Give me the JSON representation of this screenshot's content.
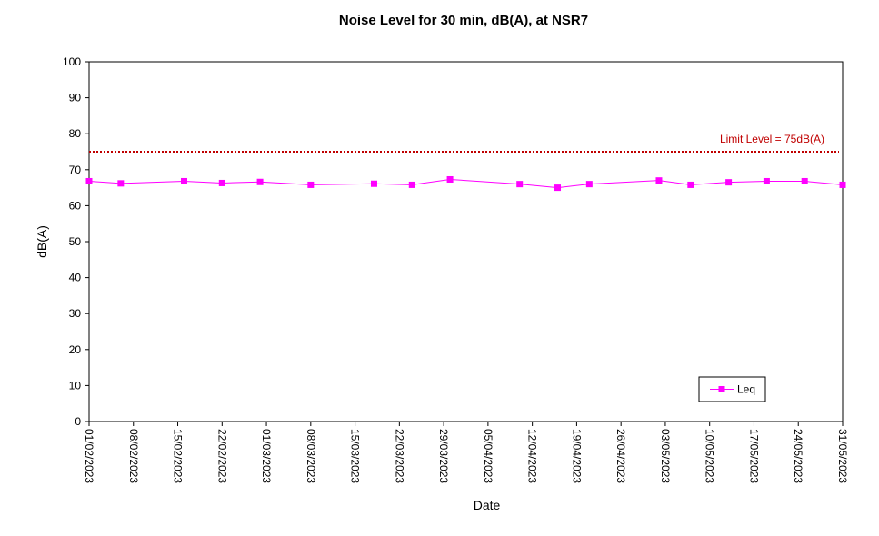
{
  "chart_data": {
    "type": "line",
    "title": "Noise Level for 30 min, dB(A), at NSR7",
    "xlabel": "Date",
    "ylabel": "dB(A)",
    "ylim": [
      0,
      100
    ],
    "yticks": [
      0,
      10,
      20,
      30,
      40,
      50,
      60,
      70,
      80,
      90,
      100
    ],
    "xlim": [
      "2023-02-01",
      "2023-05-31"
    ],
    "x_tick_labels": [
      "01/02/2023",
      "08/02/2023",
      "15/02/2023",
      "22/02/2023",
      "01/03/2023",
      "08/03/2023",
      "15/03/2023",
      "22/03/2023",
      "29/03/2023",
      "05/04/2023",
      "12/04/2023",
      "19/04/2023",
      "26/04/2023",
      "03/05/2023",
      "10/05/2023",
      "17/05/2023",
      "24/05/2023",
      "31/05/2023"
    ],
    "grid": {
      "x": false,
      "y": false
    },
    "legend_position": "bottom-right",
    "series": [
      {
        "name": "Leq",
        "color": "#ff00ff",
        "marker": "square",
        "points": [
          {
            "x": "2023-02-01",
            "y": 66.8
          },
          {
            "x": "2023-02-06",
            "y": 66.2
          },
          {
            "x": "2023-02-16",
            "y": 66.8
          },
          {
            "x": "2023-02-22",
            "y": 66.3
          },
          {
            "x": "2023-02-28",
            "y": 66.6
          },
          {
            "x": "2023-03-08",
            "y": 65.8
          },
          {
            "x": "2023-03-18",
            "y": 66.1
          },
          {
            "x": "2023-03-24",
            "y": 65.8
          },
          {
            "x": "2023-03-30",
            "y": 67.3
          },
          {
            "x": "2023-04-10",
            "y": 66.0
          },
          {
            "x": "2023-04-16",
            "y": 65.0
          },
          {
            "x": "2023-04-21",
            "y": 66.0
          },
          {
            "x": "2023-05-02",
            "y": 67.0
          },
          {
            "x": "2023-05-07",
            "y": 65.8
          },
          {
            "x": "2023-05-13",
            "y": 66.5
          },
          {
            "x": "2023-05-19",
            "y": 66.8
          },
          {
            "x": "2023-05-25",
            "y": 66.8
          },
          {
            "x": "2023-05-31",
            "y": 65.8
          }
        ]
      }
    ],
    "limit_line": {
      "value": 75,
      "label": "Limit Level  = 75dB(A)",
      "color": "#c00000",
      "style": "dotted"
    }
  }
}
